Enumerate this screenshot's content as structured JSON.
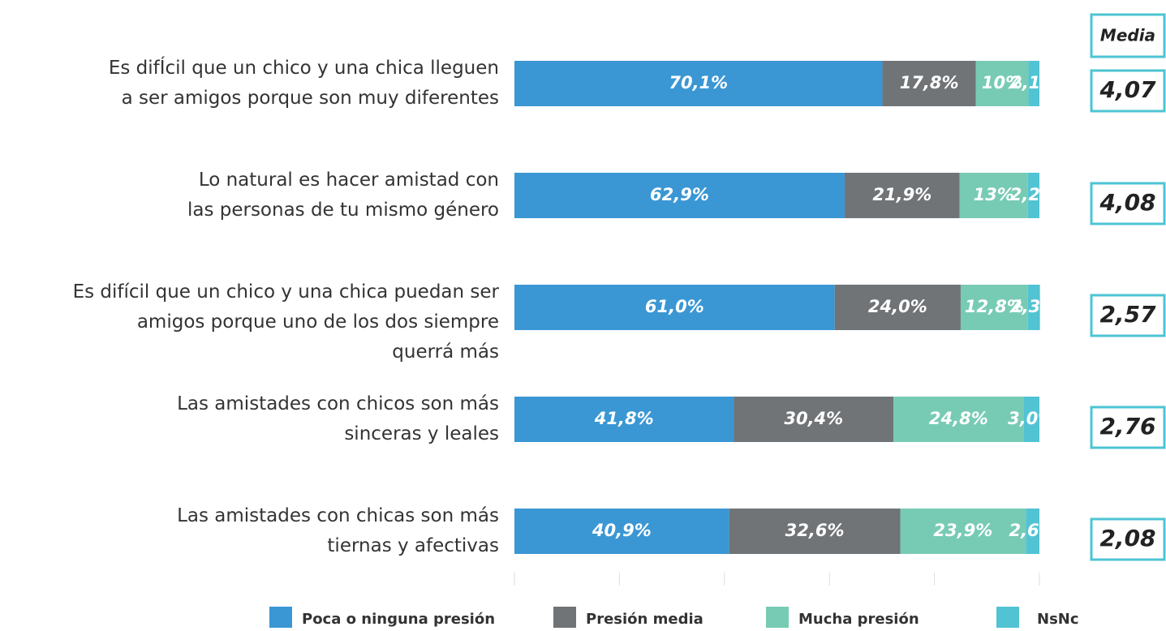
{
  "chart_data": {
    "type": "stacked-barh",
    "categories": [
      [
        "Es difÍcil que un chico y una chica lleguen",
        "a ser amigos porque son muy diferentes"
      ],
      [
        "Lo natural es hacer amistad con",
        "las personas de tu mismo género"
      ],
      [
        "Es difícil que un chico y una chica puedan ser",
        "amigos porque uno de los dos siempre",
        "querrá más"
      ],
      [
        "Las amistades con chicos son más",
        "sinceras y leales"
      ],
      [
        "Las amistades con chicas son más",
        "tiernas y afectivas"
      ]
    ],
    "series": [
      {
        "name": "Poca o ninguna presión",
        "color": "#3a97d4",
        "values": [
          70.1,
          62.9,
          61.0,
          41.8,
          40.9
        ],
        "value_labels": [
          "70,1%",
          "62,9%",
          "61,0%",
          "41,8%",
          "40,9%"
        ]
      },
      {
        "name": "Presión media",
        "color": "#707477",
        "values": [
          17.8,
          21.9,
          24.0,
          30.4,
          32.6
        ],
        "value_labels": [
          "17,8%",
          "21,9%",
          "24,0%",
          "30,4%",
          "32,6%"
        ]
      },
      {
        "name": "Mucha presión",
        "color": "#77cbb4",
        "values": [
          10,
          13,
          12.8,
          24.8,
          23.9
        ],
        "value_labels": [
          "10%",
          "13%",
          "12,8%",
          "24,8%",
          "23,9%"
        ]
      },
      {
        "name": "NsNc",
        "color": "#52c3d3",
        "values": [
          2.1,
          2.2,
          2.3,
          3.0,
          2.6
        ],
        "value_labels": [
          "2,1%",
          "2,2%",
          "2,3%",
          "3,0%",
          "2,6%"
        ]
      }
    ],
    "xlim": [
      0,
      100
    ],
    "xticks": [
      0,
      20,
      40,
      60,
      80,
      100
    ],
    "media": {
      "label": "Media",
      "values": [
        4.07,
        4.08,
        2.57,
        2.76,
        2.08
      ],
      "value_labels": [
        "4,07",
        "4,08",
        "2,57",
        "2,76",
        "2,08"
      ],
      "color": "#4cc4d4"
    }
  }
}
